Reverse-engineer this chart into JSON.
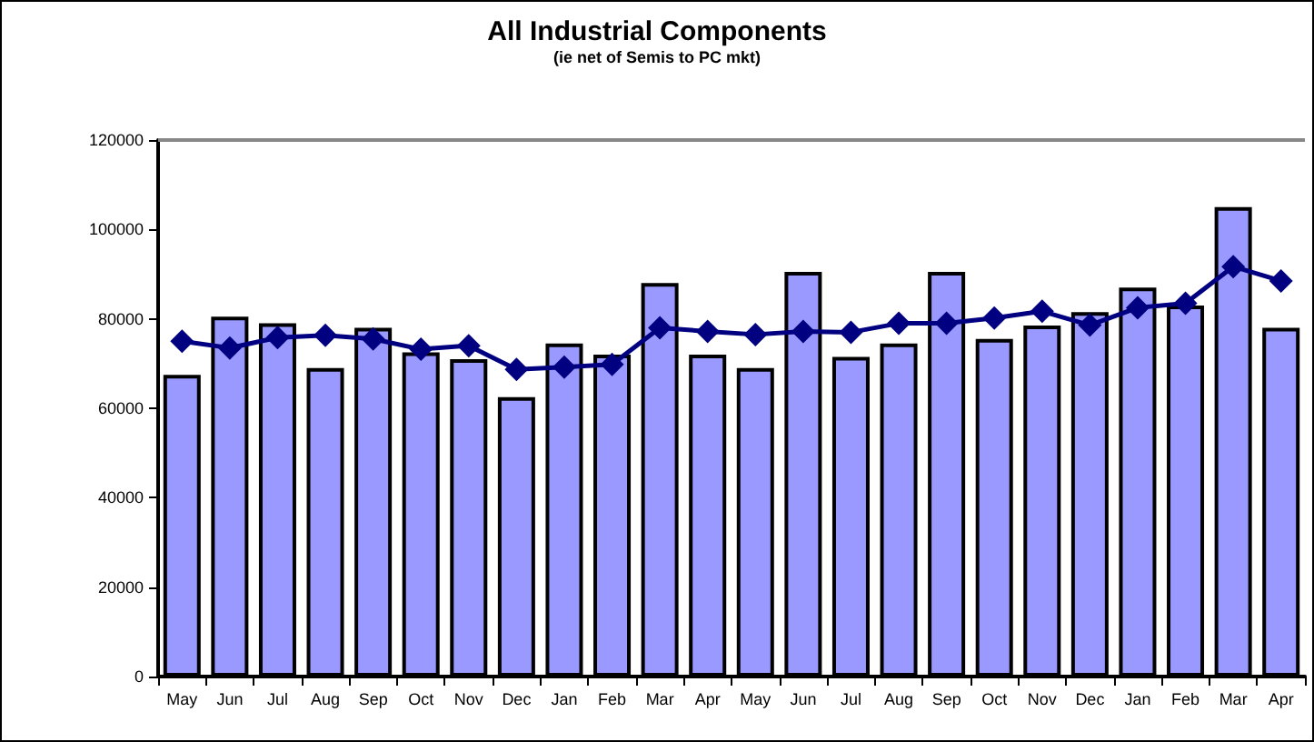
{
  "chart_data": {
    "type": "bar",
    "title": "All Industrial Components",
    "subtitle": "(ie net of Semis to PC mkt)",
    "categories": [
      "May",
      "Jun",
      "Jul",
      "Aug",
      "Sep",
      "Oct",
      "Nov",
      "Dec",
      "Jan",
      "Feb",
      "Mar",
      "Apr",
      "May",
      "Jun",
      "Jul",
      "Aug",
      "Sep",
      "Oct",
      "Nov",
      "Dec",
      "Jan",
      "Feb",
      "Mar",
      "Apr"
    ],
    "series": [
      {
        "color": "#9999ff",
        "values": [
          67500,
          80500,
          79000,
          69000,
          78000,
          72500,
          71000,
          62500,
          74500,
          72000,
          88000,
          72000,
          69000,
          90500,
          71500,
          74500,
          90500,
          75500,
          78500,
          81500,
          87000,
          83000,
          105000,
          78000
        ]
      },
      {
        "type": "line",
        "color": "#000080",
        "marker": "diamond",
        "values": [
          75000,
          73500,
          75800,
          76300,
          75500,
          73200,
          74000,
          68700,
          69200,
          69800,
          78000,
          77200,
          76500,
          77200,
          77000,
          79000,
          79000,
          80200,
          81700,
          78600,
          82500,
          83500,
          91700,
          88500
        ]
      }
    ],
    "ylim": [
      0,
      120000
    ],
    "yticks": [
      0,
      20000,
      40000,
      60000,
      80000,
      100000,
      120000
    ],
    "grid": false
  }
}
